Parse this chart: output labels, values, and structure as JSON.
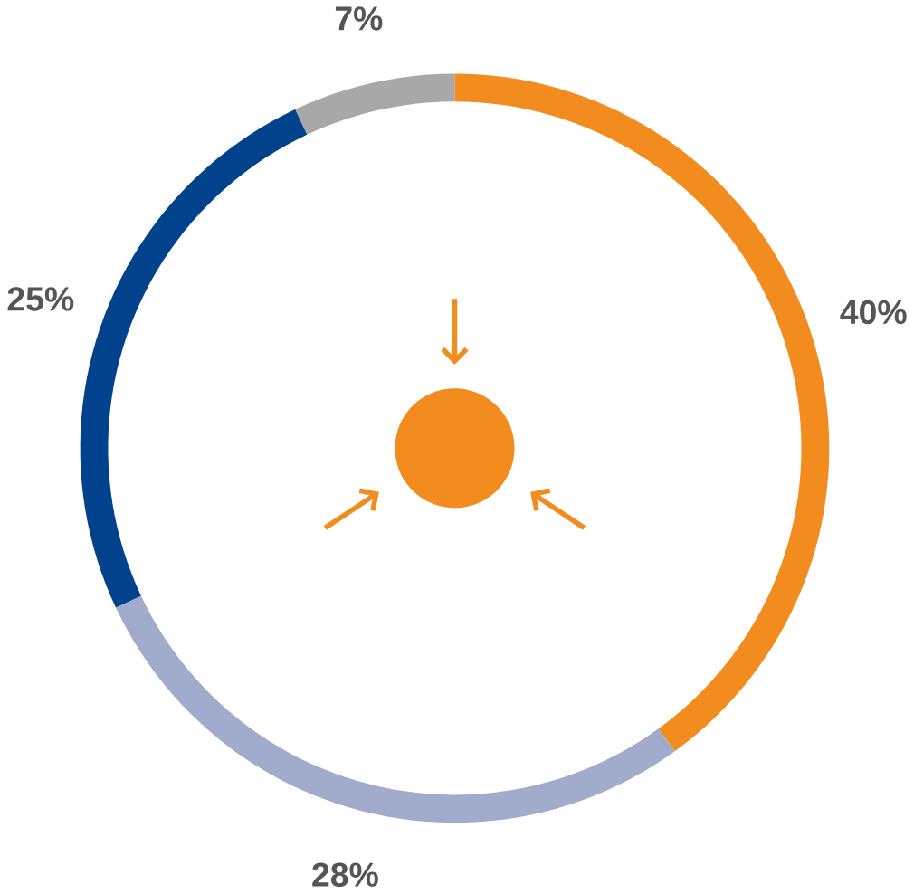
{
  "chart_data": {
    "type": "donut",
    "categories": [
      null,
      null,
      null,
      null
    ],
    "values": [
      40,
      28,
      25,
      7
    ],
    "colors": [
      "#f28c1e",
      "#a1abcc",
      "#00428c",
      "#a8a8a8"
    ],
    "value_labels": [
      "40%",
      "28%",
      "25%",
      "7%"
    ]
  }
}
